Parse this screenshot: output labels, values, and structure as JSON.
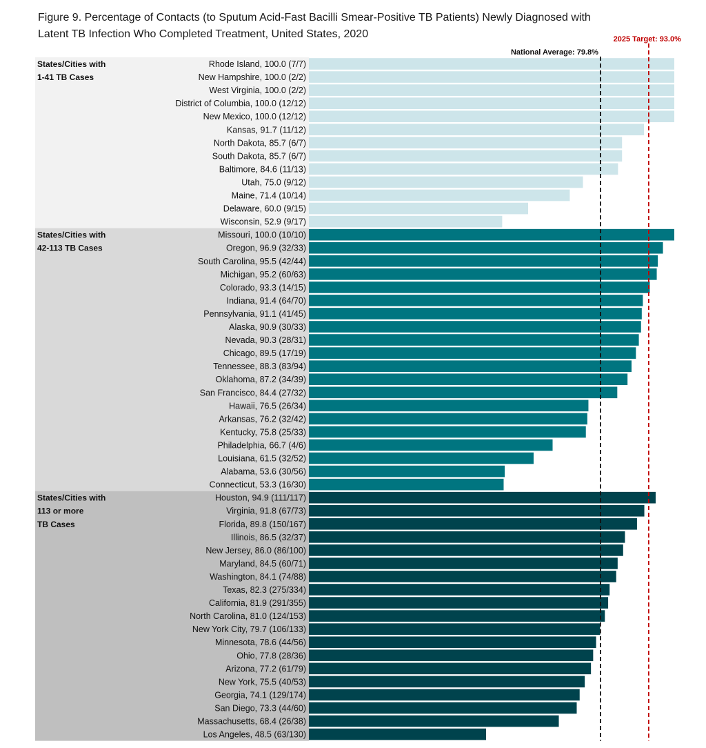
{
  "title_lines": [
    "Figure 9.  Percentage of Contacts (to Sputum Acid-Fast Bacilli Smear-Positive TB Patients) Newly Diagnosed with",
    "Latent TB Infection Who Completed Treatment, United States, 2020"
  ],
  "chart_data": {
    "type": "bar",
    "orientation": "horizontal",
    "title": "Figure 9.  Percentage of Contacts (to Sputum Acid-Fast Bacilli Smear-Positive TB Patients) Newly Diagnosed with Latent TB Infection Who Completed Treatment, United States, 2020",
    "xlim": [
      0,
      100
    ],
    "grid": false,
    "reference_lines": [
      {
        "label": "National Average: 79.8%",
        "value": 79.8,
        "color": "#111111",
        "style": "dashed"
      },
      {
        "label": "2025 Target: 93.0%",
        "value": 93.0,
        "color": "#c00000",
        "style": "dashed"
      }
    ],
    "groups": [
      {
        "label_lines": [
          "States/Cities with",
          "1-41 TB Cases"
        ],
        "bar_color": "#cde5ea",
        "band_color": "#f2f2f2",
        "items": [
          {
            "label": "Rhode Island, 100.0 (7/7)",
            "value": 100.0
          },
          {
            "label": "New Hampshire, 100.0 (2/2)",
            "value": 100.0
          },
          {
            "label": "West Virginia, 100.0 (2/2)",
            "value": 100.0
          },
          {
            "label": "District of Columbia, 100.0 (12/12)",
            "value": 100.0
          },
          {
            "label": "New Mexico, 100.0 (12/12)",
            "value": 100.0
          },
          {
            "label": "Kansas, 91.7 (11/12)",
            "value": 91.7
          },
          {
            "label": "North Dakota, 85.7 (6/7)",
            "value": 85.7
          },
          {
            "label": "South Dakota, 85.7 (6/7)",
            "value": 85.7
          },
          {
            "label": "Baltimore, 84.6 (11/13)",
            "value": 84.6
          },
          {
            "label": "Utah, 75.0 (9/12)",
            "value": 75.0
          },
          {
            "label": "Maine, 71.4 (10/14)",
            "value": 71.4
          },
          {
            "label": "Delaware, 60.0 (9/15)",
            "value": 60.0
          },
          {
            "label": "Wisconsin, 52.9 (9/17)",
            "value": 52.9
          }
        ]
      },
      {
        "label_lines": [
          "States/Cities with",
          "42-113 TB Cases"
        ],
        "bar_color": "#007580",
        "band_color": "#d9d9d9",
        "items": [
          {
            "label": "Missouri, 100.0 (10/10)",
            "value": 100.0
          },
          {
            "label": "Oregon, 96.9 (32/33)",
            "value": 96.9
          },
          {
            "label": "South Carolina, 95.5 (42/44)",
            "value": 95.5
          },
          {
            "label": "Michigan, 95.2 (60/63)",
            "value": 95.2
          },
          {
            "label": "Colorado, 93.3 (14/15)",
            "value": 93.3
          },
          {
            "label": "Indiana, 91.4 (64/70)",
            "value": 91.4
          },
          {
            "label": "Pennsylvania, 91.1 (41/45)",
            "value": 91.1
          },
          {
            "label": "Alaska, 90.9 (30/33)",
            "value": 90.9
          },
          {
            "label": "Nevada, 90.3 (28/31)",
            "value": 90.3
          },
          {
            "label": "Chicago, 89.5 (17/19)",
            "value": 89.5
          },
          {
            "label": "Tennessee, 88.3 (83/94)",
            "value": 88.3
          },
          {
            "label": "Oklahoma, 87.2 (34/39)",
            "value": 87.2
          },
          {
            "label": "San Francisco, 84.4 (27/32)",
            "value": 84.4
          },
          {
            "label": "Hawaii, 76.5 (26/34)",
            "value": 76.5
          },
          {
            "label": "Arkansas, 76.2 (32/42)",
            "value": 76.2
          },
          {
            "label": "Kentucky, 75.8 (25/33)",
            "value": 75.8
          },
          {
            "label": "Philadelphia, 66.7 (4/6)",
            "value": 66.7
          },
          {
            "label": "Louisiana, 61.5 (32/52)",
            "value": 61.5
          },
          {
            "label": "Alabama, 53.6 (30/56)",
            "value": 53.6
          },
          {
            "label": "Connecticut, 53.3 (16/30)",
            "value": 53.3
          }
        ]
      },
      {
        "label_lines": [
          "States/Cities with",
          "113 or more",
          "TB Cases"
        ],
        "bar_color": "#00434d",
        "band_color": "#bfbfbf",
        "items": [
          {
            "label": "Houston, 94.9 (111/117)",
            "value": 94.9
          },
          {
            "label": "Virginia, 91.8 (67/73)",
            "value": 91.8
          },
          {
            "label": "Florida, 89.8 (150/167)",
            "value": 89.8
          },
          {
            "label": "Illinois, 86.5 (32/37)",
            "value": 86.5
          },
          {
            "label": "New Jersey, 86.0 (86/100)",
            "value": 86.0
          },
          {
            "label": "Maryland, 84.5 (60/71)",
            "value": 84.5
          },
          {
            "label": "Washington, 84.1 (74/88)",
            "value": 84.1
          },
          {
            "label": "Texas, 82.3 (275/334)",
            "value": 82.3
          },
          {
            "label": "California, 81.9 (291/355)",
            "value": 81.9
          },
          {
            "label": "North Carolina, 81.0 (124/153)",
            "value": 81.0
          },
          {
            "label": "New York City, 79.7 (106/133)",
            "value": 79.7
          },
          {
            "label": "Minnesota, 78.6 (44/56)",
            "value": 78.6
          },
          {
            "label": "Ohio, 77.8 (28/36)",
            "value": 77.8
          },
          {
            "label": "Arizona, 77.2 (61/79)",
            "value": 77.2
          },
          {
            "label": "New York, 75.5 (40/53)",
            "value": 75.5
          },
          {
            "label": "Georgia, 74.1 (129/174)",
            "value": 74.1
          },
          {
            "label": "San Diego, 73.3 (44/60)",
            "value": 73.3
          },
          {
            "label": "Massachusetts, 68.4 (26/38)",
            "value": 68.4
          },
          {
            "label": "Los Angeles, 48.5 (63/130)",
            "value": 48.5
          }
        ]
      }
    ]
  }
}
